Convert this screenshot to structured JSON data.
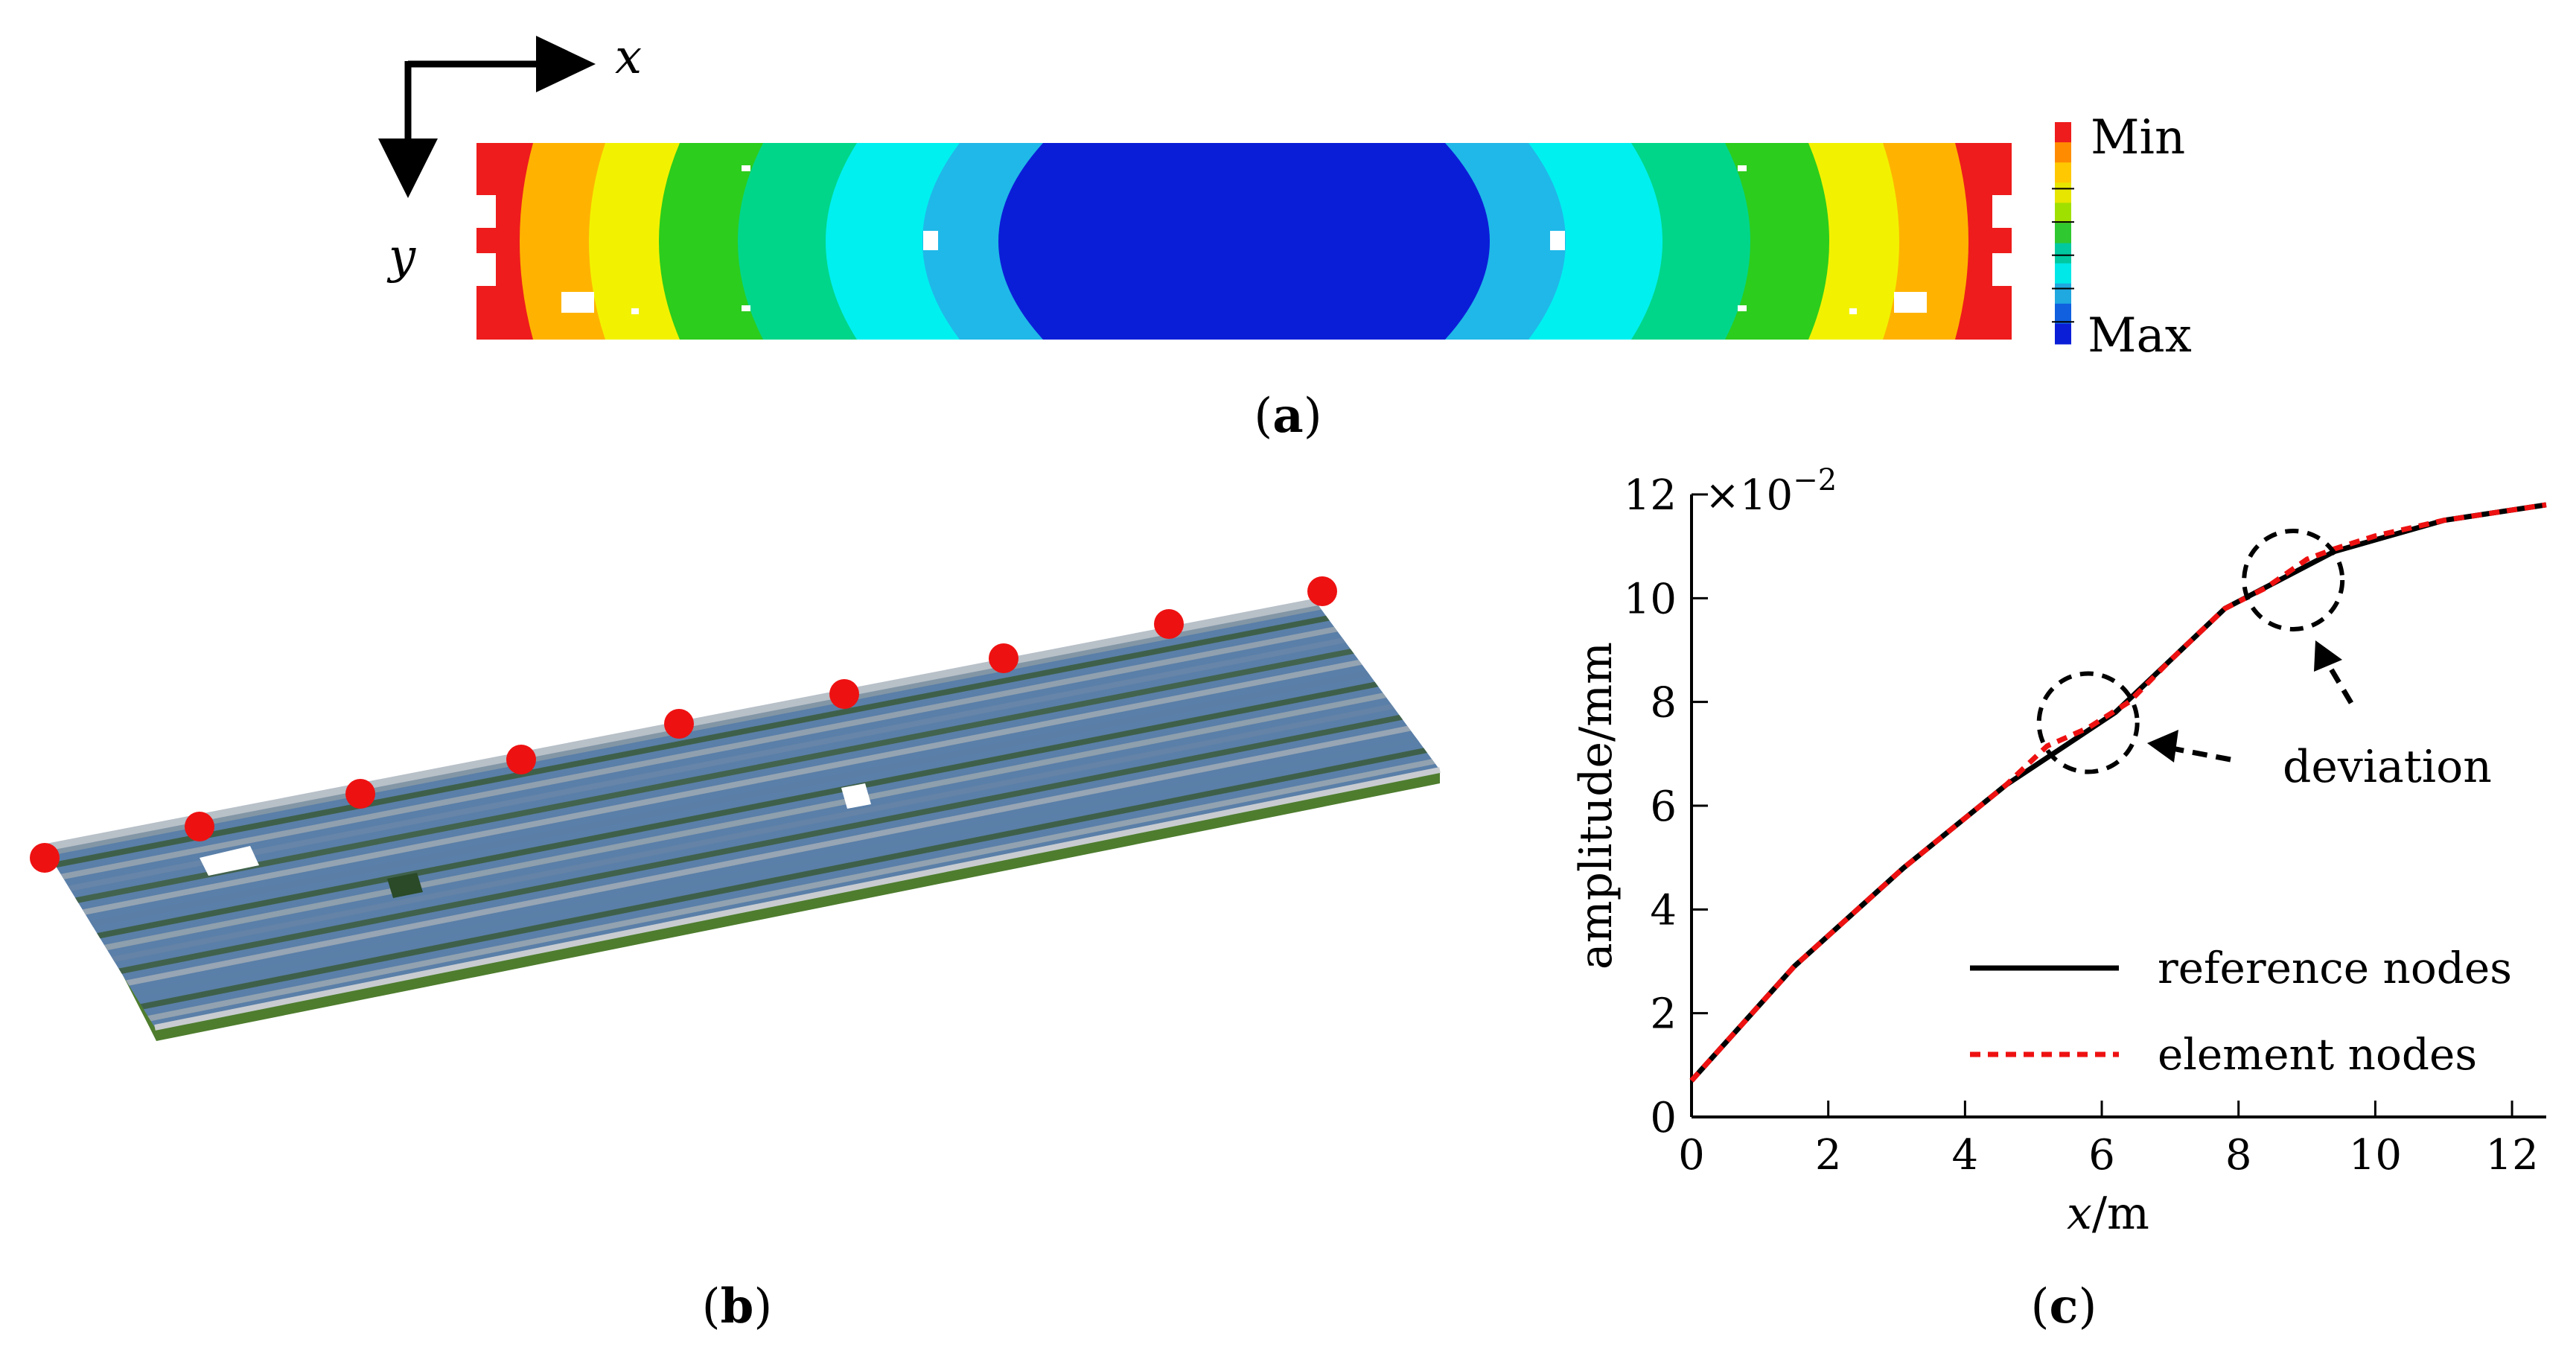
{
  "panel_a": {
    "label": "a",
    "axis_x": "x",
    "axis_y": "y",
    "colorbar_min": "Min",
    "colorbar_max": "Max",
    "contour_colors": [
      "#ee1c1c",
      "#ffb300",
      "#f2f200",
      "#2ccd1c",
      "#00d68a",
      "#00f0f0",
      "#20b8e8",
      "#0a1ed8"
    ],
    "colorbar_colors": [
      "#ee1c1c",
      "#ff8c00",
      "#ffc800",
      "#e6e600",
      "#a0e000",
      "#30c830",
      "#00c8a0",
      "#00e8e8",
      "#20a8e0",
      "#1060e0",
      "#0a1ed8"
    ]
  },
  "panel_b": {
    "label": "b",
    "marker_color": "#ee1111"
  },
  "panel_c": {
    "label": "c",
    "chart_data": {
      "type": "line",
      "xlabel_var": "x",
      "xlabel_unit": "/m",
      "ylabel": "amplitude/mm",
      "y_multiplier": "×10",
      "y_multiplier_exp": "−2",
      "xlim": [
        0,
        12.5
      ],
      "ylim": [
        0,
        12
      ],
      "xticks": [
        0,
        2,
        4,
        6,
        8,
        10,
        12
      ],
      "yticks": [
        0,
        2,
        4,
        6,
        8,
        10,
        12
      ],
      "grid": false,
      "legend_position": "bottom-right",
      "annotation": "deviation",
      "series": [
        {
          "name": "reference nodes",
          "color": "#000000",
          "style": "solid",
          "x": [
            0,
            1.5,
            3.1,
            4.6,
            6.2,
            7.8,
            9.4,
            11.0,
            12.5
          ],
          "y": [
            0.7,
            2.9,
            4.8,
            6.4,
            7.8,
            9.8,
            10.9,
            11.5,
            11.8
          ]
        },
        {
          "name": "element nodes",
          "color": "#ee1111",
          "style": "dashed",
          "x": [
            0,
            1.5,
            3.1,
            4.6,
            5.2,
            5.8,
            6.4,
            7.0,
            7.8,
            8.4,
            9.0,
            9.4,
            10.0,
            11.0,
            12.5
          ],
          "y": [
            0.7,
            2.9,
            4.8,
            6.4,
            7.15,
            7.5,
            8.0,
            8.8,
            9.8,
            10.2,
            10.75,
            10.95,
            11.2,
            11.5,
            11.8
          ]
        }
      ],
      "deviation_circles": [
        {
          "x": 5.8,
          "y": 7.6
        },
        {
          "x": 8.8,
          "y": 10.35
        }
      ]
    }
  }
}
